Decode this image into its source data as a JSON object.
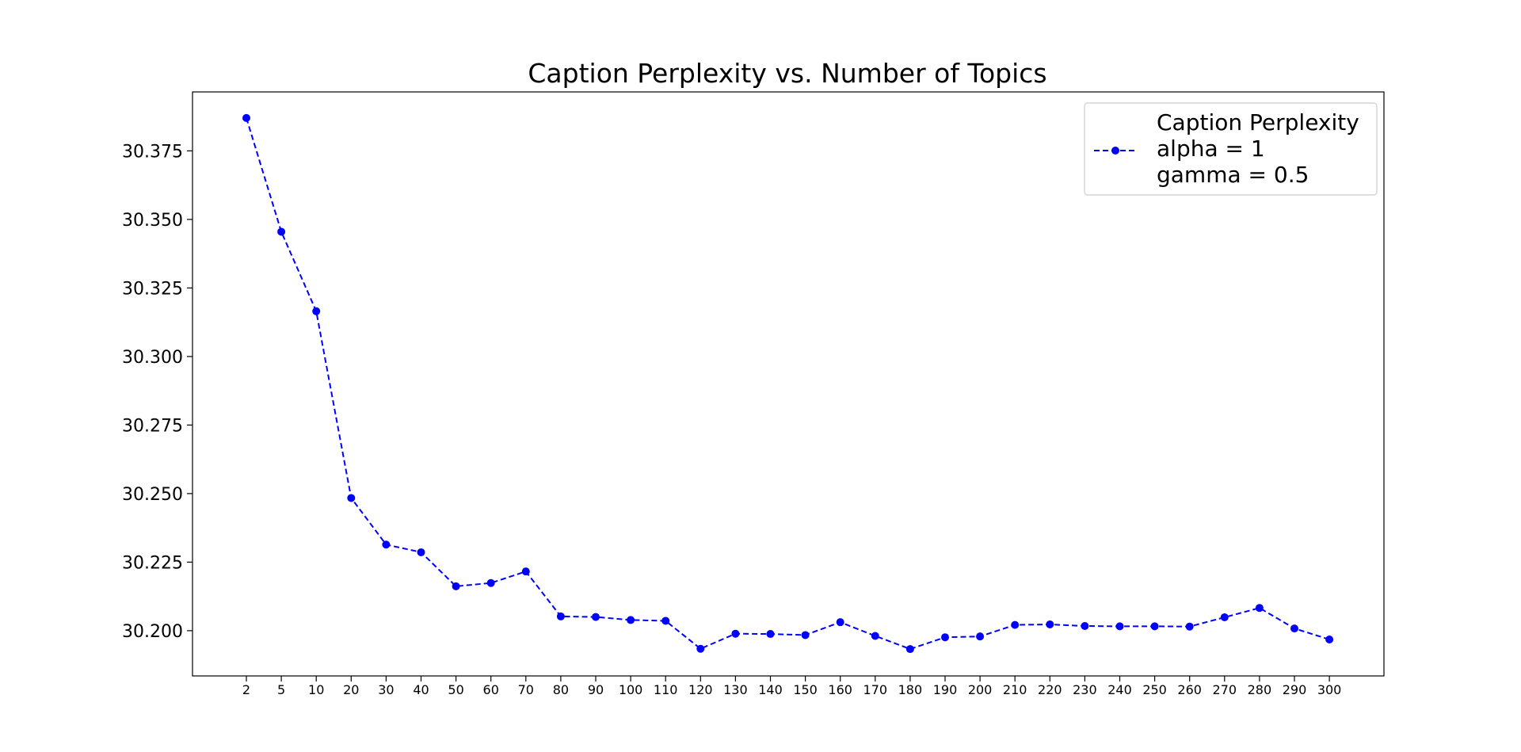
{
  "chart_data": {
    "type": "line",
    "title": "Caption Perplexity vs. Number of Topics",
    "xlabel": "",
    "ylabel": "",
    "categories": [
      "2",
      "5",
      "10",
      "20",
      "30",
      "40",
      "50",
      "60",
      "70",
      "80",
      "90",
      "100",
      "110",
      "120",
      "130",
      "140",
      "150",
      "160",
      "170",
      "180",
      "190",
      "200",
      "210",
      "220",
      "230",
      "240",
      "250",
      "260",
      "270",
      "280",
      "290",
      "300"
    ],
    "series": [
      {
        "name": "Caption Perplexity\nalpha = 1\ngamma = 0.5",
        "color": "#0000ff",
        "line_style": "dashed",
        "marker": "circle",
        "values": [
          30.387,
          30.3455,
          30.3165,
          30.2484,
          30.2314,
          30.2286,
          30.2162,
          30.2174,
          30.2216,
          30.2052,
          30.205,
          30.2039,
          30.2036,
          30.1934,
          30.1989,
          30.1988,
          30.1984,
          30.2031,
          30.1981,
          30.1933,
          30.1976,
          30.1979,
          30.2021,
          30.2023,
          30.2017,
          30.2016,
          30.2016,
          30.2015,
          30.2049,
          30.2083,
          30.2008,
          30.1968
        ]
      }
    ],
    "yticks": [
      "30.200",
      "30.225",
      "30.250",
      "30.275",
      "30.300",
      "30.325",
      "30.350",
      "30.375"
    ],
    "ylim": [
      30.1835,
      30.3965
    ],
    "grid": false,
    "legend_position": "top-right"
  }
}
